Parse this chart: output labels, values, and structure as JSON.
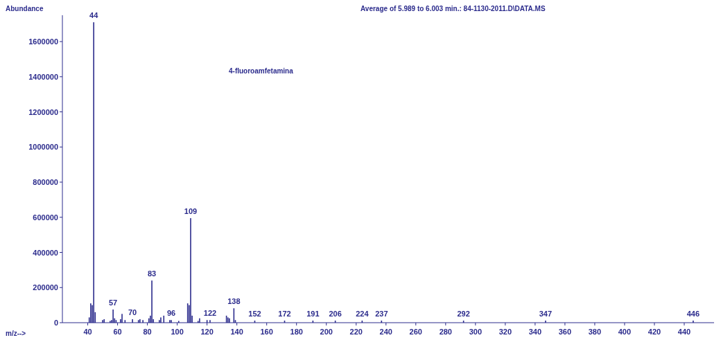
{
  "chart_data": {
    "type": "bar",
    "title": "Average of 5.989 to 6.003 min.: 84-1130-2011.D\\DATA.MS",
    "xlabel": "m/z-->",
    "ylabel": "Abundance",
    "color": "#2b2b8c",
    "x": [
      41,
      42,
      43,
      44,
      45,
      50,
      51,
      55,
      56,
      57,
      58,
      59,
      62,
      63,
      65,
      70,
      74,
      75,
      77,
      81,
      82,
      83,
      84,
      88,
      89,
      91,
      95,
      96,
      101,
      107,
      108,
      109,
      110,
      114,
      115,
      120,
      122,
      133,
      134,
      135,
      138,
      139,
      152,
      172,
      191,
      206,
      224,
      237,
      292,
      347,
      446
    ],
    "values": [
      30000,
      110000,
      100000,
      1710000,
      60000,
      15000,
      20000,
      10000,
      15000,
      75000,
      25000,
      15000,
      20000,
      50000,
      15000,
      20000,
      15000,
      20000,
      15000,
      25000,
      40000,
      240000,
      20000,
      15000,
      30000,
      40000,
      15000,
      15000,
      10000,
      110000,
      100000,
      595000,
      40000,
      10000,
      25000,
      15000,
      15000,
      40000,
      30000,
      25000,
      82000,
      15000,
      12000,
      12000,
      12000,
      12000,
      12000,
      12000,
      12000,
      12000,
      12000
    ],
    "xlim": [
      23,
      460
    ],
    "ylim": [
      0,
      1750000
    ],
    "xticks": [
      40,
      60,
      80,
      100,
      120,
      140,
      160,
      180,
      200,
      220,
      240,
      260,
      280,
      300,
      320,
      340,
      360,
      380,
      400,
      420,
      440
    ],
    "yticks": [
      0,
      200000,
      400000,
      600000,
      800000,
      1000000,
      1200000,
      1400000,
      1600000
    ],
    "annotations": [
      "4-fluoroamfetamina",
      {
        "text": "44",
        "x": 44,
        "y": 1710000
      },
      {
        "text": "57",
        "x": 57,
        "y": 75000
      },
      {
        "text": "70",
        "x": 70,
        "y": 20000
      },
      {
        "text": "83",
        "x": 83,
        "y": 240000
      },
      {
        "text": "96",
        "x": 96,
        "y": 15000
      },
      {
        "text": "109",
        "x": 109,
        "y": 595000
      },
      {
        "text": "122",
        "x": 122,
        "y": 15000
      },
      {
        "text": "138",
        "x": 138,
        "y": 82000
      },
      {
        "text": "152",
        "x": 152,
        "y": 12000
      },
      {
        "text": "172",
        "x": 172,
        "y": 12000
      },
      {
        "text": "191",
        "x": 191,
        "y": 12000
      },
      {
        "text": "206",
        "x": 206,
        "y": 12000
      },
      {
        "text": "224",
        "x": 224,
        "y": 12000
      },
      {
        "text": "237",
        "x": 237,
        "y": 12000
      },
      {
        "text": "292",
        "x": 292,
        "y": 12000
      },
      {
        "text": "347",
        "x": 347,
        "y": 12000
      },
      {
        "text": "446",
        "x": 446,
        "y": 12000
      }
    ]
  }
}
